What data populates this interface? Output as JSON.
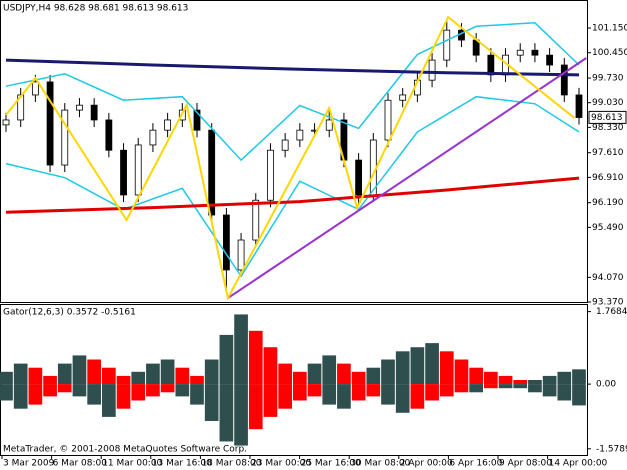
{
  "chart_data": [
    {
      "type": "candlestick",
      "title": "USDJPY,H4 98.628 98.681 98.613 98.613",
      "up_color": "#ffffff",
      "down_color": "#000000",
      "outline_color": "#000000",
      "candles": [
        [
          98.4,
          98.74,
          98.2,
          98.54
        ],
        [
          98.54,
          99.45,
          98.34,
          99.25
        ],
        [
          99.25,
          99.82,
          99.05,
          99.62
        ],
        [
          99.62,
          99.82,
          97.06,
          97.26
        ],
        [
          97.26,
          99.02,
          97.06,
          98.82
        ],
        [
          98.82,
          99.16,
          98.62,
          98.96
        ],
        [
          98.96,
          99.16,
          98.34,
          98.54
        ],
        [
          98.54,
          98.74,
          97.48,
          97.68
        ],
        [
          97.68,
          97.88,
          96.21,
          96.41
        ],
        [
          96.41,
          98.03,
          96.21,
          97.83
        ],
        [
          97.83,
          98.45,
          97.63,
          98.25
        ],
        [
          98.25,
          98.74,
          98.05,
          98.54
        ],
        [
          98.54,
          99.02,
          98.34,
          98.82
        ],
        [
          98.82,
          99.02,
          98.05,
          98.25
        ],
        [
          98.25,
          98.45,
          95.64,
          95.84
        ],
        [
          95.84,
          96.04,
          93.7,
          94.28
        ],
        [
          94.28,
          95.33,
          94.08,
          95.13
        ],
        [
          95.13,
          96.46,
          94.93,
          96.26
        ],
        [
          96.26,
          97.88,
          96.06,
          97.68
        ],
        [
          97.68,
          98.17,
          97.48,
          97.97
        ],
        [
          97.97,
          98.45,
          97.77,
          98.25
        ],
        [
          98.25,
          98.45,
          98.05,
          98.25
        ],
        [
          98.25,
          98.88,
          98.05,
          98.54
        ],
        [
          98.54,
          98.74,
          97.2,
          97.4
        ],
        [
          97.4,
          97.6,
          96.11,
          96.41
        ],
        [
          96.41,
          98.17,
          96.21,
          97.97
        ],
        [
          97.97,
          99.3,
          97.77,
          99.1
        ],
        [
          99.1,
          99.45,
          98.9,
          99.25
        ],
        [
          99.25,
          99.87,
          99.05,
          99.67
        ],
        [
          99.67,
          100.44,
          99.47,
          100.24
        ],
        [
          100.24,
          101.39,
          100.04,
          101.09
        ],
        [
          101.09,
          101.29,
          100.61,
          100.81
        ],
        [
          100.81,
          101.01,
          100.18,
          100.38
        ],
        [
          100.38,
          100.58,
          99.62,
          99.82
        ],
        [
          99.82,
          100.58,
          99.62,
          100.38
        ],
        [
          100.38,
          100.72,
          100.18,
          100.52
        ],
        [
          100.52,
          100.72,
          100.18,
          100.38
        ],
        [
          100.38,
          100.58,
          99.9,
          100.1
        ],
        [
          100.1,
          100.3,
          99.05,
          99.25
        ],
        [
          99.25,
          99.45,
          98.41,
          98.61
        ]
      ],
      "lines": [
        {
          "color": "#1ec8e6",
          "width": 1.5,
          "x": [
            0,
            4,
            8,
            12,
            16,
            20,
            24,
            28,
            32,
            36,
            39
          ],
          "values": [
            99.5,
            99.85,
            99.1,
            99.2,
            97.4,
            98.95,
            98.3,
            100.4,
            101.2,
            101.3,
            100.1
          ]
        },
        {
          "color": "#1ec8e6",
          "width": 1.5,
          "x": [
            0,
            4,
            8,
            12,
            16,
            20,
            24,
            28,
            32,
            36,
            39
          ],
          "values": [
            97.3,
            96.9,
            96.0,
            96.6,
            94.1,
            96.8,
            96.0,
            98.2,
            99.2,
            99.0,
            98.2
          ]
        },
        {
          "color": "#191970",
          "width": 3,
          "x": [
            0,
            10,
            20,
            30,
            39
          ],
          "values": [
            100.24,
            100.1,
            99.98,
            99.88,
            99.82
          ]
        },
        {
          "color": "#e00000",
          "width": 3,
          "x": [
            0,
            10,
            20,
            30,
            39
          ],
          "values": [
            95.92,
            96.05,
            96.22,
            96.55,
            96.89
          ]
        },
        {
          "color": "#9932cc",
          "width": 2,
          "x": [
            15.1,
            39.5
          ],
          "values": [
            93.48,
            100.3
          ]
        },
        {
          "color": "#ffd700",
          "width": 2,
          "x": [
            0,
            2,
            8.2,
            12.3,
            15.1,
            22,
            23.9,
            30.1,
            38.7
          ],
          "values": [
            98.68,
            99.73,
            95.7,
            98.97,
            93.48,
            98.88,
            96.04,
            101.46,
            98.59
          ]
        }
      ],
      "ylim": [
        93.37,
        101.89
      ],
      "yticks": [
        {
          "value": 101.15,
          "label": "101.150"
        },
        {
          "value": 100.45,
          "label": "100.450"
        },
        {
          "value": 99.73,
          "label": "99.730"
        },
        {
          "value": 99.03,
          "label": "99.030"
        },
        {
          "value": 98.33,
          "label": "98.330"
        },
        {
          "value": 97.61,
          "label": "97.610"
        },
        {
          "value": 96.91,
          "label": "96.910"
        },
        {
          "value": 96.19,
          "label": "96.190"
        },
        {
          "value": 95.49,
          "label": "95.490"
        },
        {
          "value": 94.07,
          "label": "94.070"
        },
        {
          "value": 93.37,
          "label": "93.370"
        }
      ],
      "price_label": {
        "value": 98.613,
        "label": "98.613"
      },
      "xlabels": [
        "3 Mar 2009",
        "6 Mar 08:00",
        "11 Mar 00:00",
        "13 Mar 16:00",
        "18 Mar 08:00",
        "23 Mar 00:00",
        "25 Mar 16:00",
        "30 Mar 08:00",
        "2 Apr 00:00",
        "6 Apr 16:00",
        "9 Apr 08:00",
        "14 Apr 00:00"
      ]
    },
    {
      "type": "gator",
      "title": "Gator(12,6,3) 0.3572 -0.5161",
      "grow_color": "#2f4f4f",
      "shrink_color": "#ff0000",
      "upper": [
        0.3,
        0.5,
        0.4,
        0.2,
        0.5,
        0.7,
        0.6,
        0.4,
        0.2,
        0.3,
        0.5,
        0.6,
        0.4,
        0.2,
        0.6,
        1.2,
        1.7,
        1.3,
        0.9,
        0.5,
        0.3,
        0.5,
        0.7,
        0.5,
        0.3,
        0.4,
        0.6,
        0.8,
        0.9,
        1.0,
        0.8,
        0.6,
        0.4,
        0.3,
        0.2,
        0.1,
        0.1,
        0.2,
        0.3,
        0.36
      ],
      "lower": [
        -0.4,
        -0.6,
        -0.5,
        -0.3,
        -0.2,
        -0.3,
        -0.5,
        -0.8,
        -0.6,
        -0.4,
        -0.3,
        -0.2,
        -0.3,
        -0.5,
        -0.9,
        -1.4,
        -1.5,
        -1.1,
        -0.8,
        -0.6,
        -0.4,
        -0.3,
        -0.5,
        -0.6,
        -0.4,
        -0.3,
        -0.5,
        -0.7,
        -0.6,
        -0.4,
        -0.3,
        -0.2,
        -0.2,
        -0.1,
        -0.1,
        -0.1,
        -0.2,
        -0.3,
        -0.4,
        -0.52
      ],
      "ylim": [
        -1.73,
        1.93
      ],
      "yticks": [
        {
          "value": 1.7684,
          "label": "1.7684"
        },
        {
          "value": 0,
          "label": "0.00"
        },
        {
          "value": -1.5789,
          "label": "-1.5789"
        }
      ],
      "annotation": "MetaTrader, © 2001-2008 MetaQuotes Software Corp."
    }
  ]
}
